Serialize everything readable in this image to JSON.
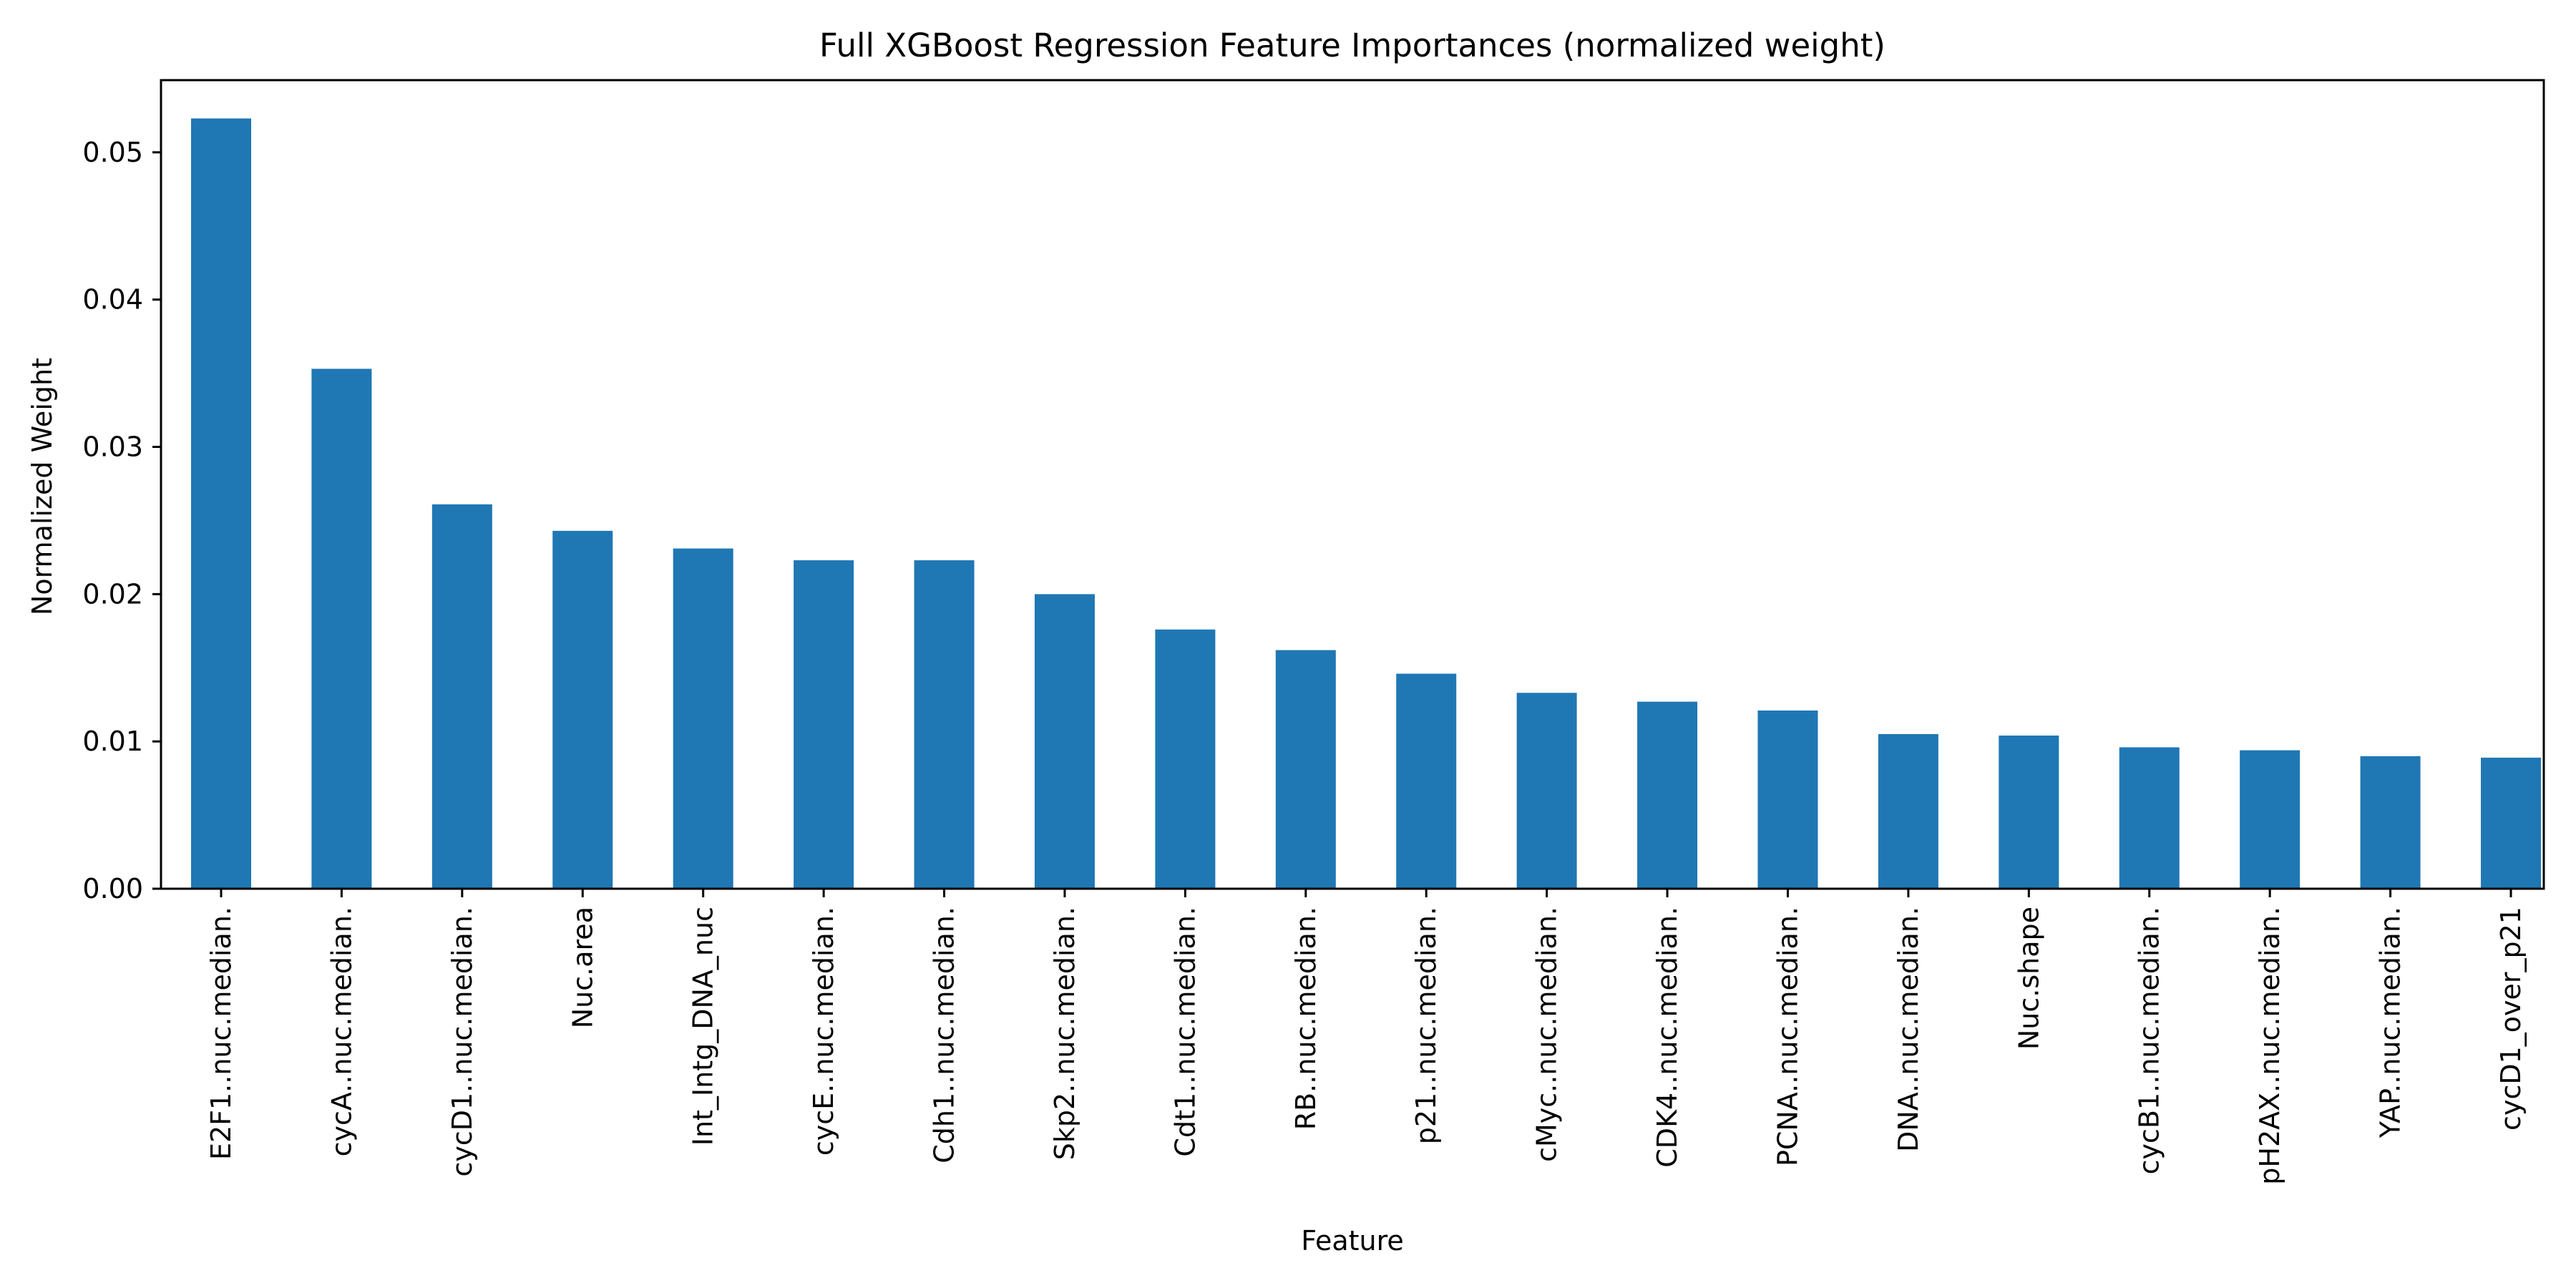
{
  "chart_data": {
    "type": "bar",
    "title": "Full XGBoost Regression Feature Importances (normalized weight)",
    "xlabel": "Feature",
    "ylabel": "Normalized Weight",
    "categories": [
      "E2F1..nuc.median.",
      "cycA..nuc.median.",
      "cycD1..nuc.median.",
      "Nuc.area",
      "Int_Intg_DNA_nuc",
      "cycE..nuc.median.",
      "Cdh1..nuc.median.",
      "Skp2..nuc.median.",
      "Cdt1..nuc.median.",
      "RB..nuc.median.",
      "p21..nuc.median.",
      "cMyc..nuc.median.",
      "CDK4..nuc.median.",
      "PCNA..nuc.median.",
      "DNA..nuc.median.",
      "Nuc.shape",
      "cycB1..nuc.median.",
      "pH2AX..nuc.median.",
      "YAP..nuc.median.",
      "cycD1_over_p21"
    ],
    "values": [
      0.0523,
      0.0353,
      0.0261,
      0.0243,
      0.0231,
      0.0223,
      0.0223,
      0.02,
      0.0176,
      0.0162,
      0.0146,
      0.0133,
      0.0127,
      0.0121,
      0.0105,
      0.0104,
      0.0096,
      0.0094,
      0.009,
      0.0089
    ],
    "yticks": [
      0.0,
      0.01,
      0.02,
      0.03,
      0.04,
      0.05
    ],
    "ytick_labels": [
      "0.00",
      "0.01",
      "0.02",
      "0.03",
      "0.04",
      "0.05"
    ],
    "ylim": [
      0,
      0.0549
    ],
    "grid": false,
    "legend": "none",
    "bar_color": "#1f77b4"
  }
}
